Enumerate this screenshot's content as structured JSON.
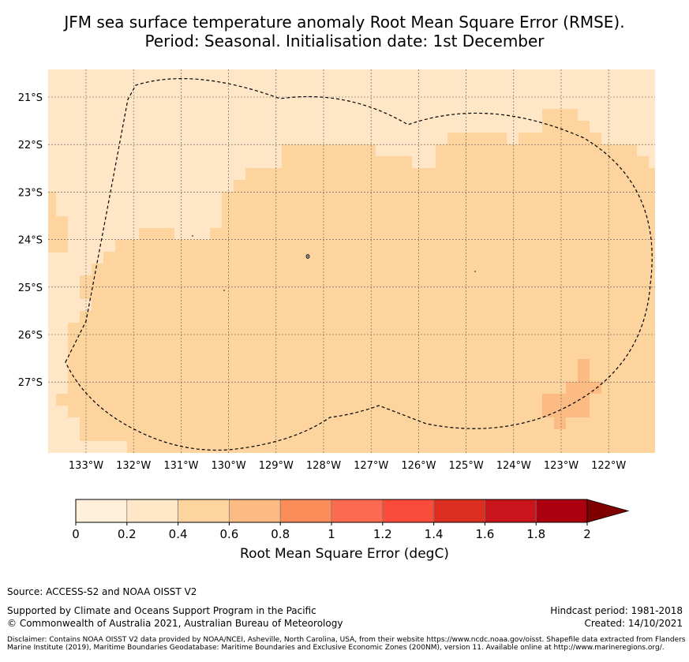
{
  "title": {
    "line1": "JFM sea surface temperature anomaly Root Mean Square Error (RMSE).",
    "line2": "Period: Seasonal. Initialisation date: 1st December"
  },
  "map": {
    "lat_labels": [
      "21°S",
      "22°S",
      "23°S",
      "24°S",
      "25°S",
      "26°S",
      "27°S"
    ],
    "lon_labels": [
      "133°W",
      "132°W",
      "131°W",
      "130°W",
      "129°W",
      "128°W",
      "127°W",
      "126°W",
      "125°W",
      "124°W",
      "123°W",
      "122°W"
    ],
    "colors": {
      "bin_0_2": "#fff0db",
      "bin_2_4": "#fee6c6",
      "bin_4_6": "#fdd49e",
      "bin_6_8": "#fdbb84",
      "eez_line": "#000000"
    },
    "field_description": "Mostly 0.4–0.6 degC over the central region, 0.2–0.4 along the northern and western edges, small 0.6–0.8 patches near the eastern boundary"
  },
  "colorbar": {
    "label": "Root Mean Square Error (degC)",
    "ticks": [
      "0",
      "0.2",
      "0.4",
      "0.6",
      "0.8",
      "1",
      "1.2",
      "1.4",
      "1.6",
      "1.8",
      "2"
    ],
    "colors": [
      "#fff0db",
      "#fee6c6",
      "#fdd49e",
      "#fdbb84",
      "#fc8d59",
      "#fc6a4f",
      "#fb4b3b",
      "#dd2e22",
      "#c9141b",
      "#ac0010",
      "#7f0000"
    ]
  },
  "footer": {
    "source": "Source: ACCESS-S2 and NOAA OISST V2",
    "supported": "Supported by Climate and Oceans Support Program in the Pacific",
    "copyright": "© Commonwealth of Australia 2021, Australian Bureau of Meteorology",
    "hindcast": "Hindcast period: 1981-2018",
    "created": "Created: 14/10/2021",
    "disclaimer": "Disclaimer: Contains NOAA OISST V2 data provided by NOAA/NCEI, Asheville, North Carolina, USA, from their website https://www.ncdc.noaa.gov/oisst. Shapefile data extracted from Flanders Marine Institute (2019), Maritime Boundaries Geodatabase: Maritime Boundaries and Exclusive Economic Zones (200NM), version 11. Available online at http://www.marineregions.org/."
  }
}
